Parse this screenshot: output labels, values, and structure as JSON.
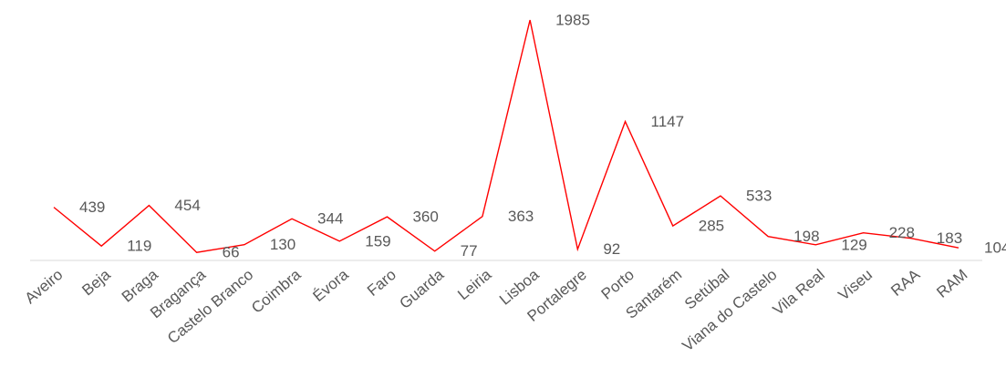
{
  "chart_data": {
    "type": "line",
    "categories": [
      "Aveiro",
      "Beja",
      "Braga",
      "Bragança",
      "Castelo Branco",
      "Coimbra",
      "Évora",
      "Faro",
      "Guarda",
      "Leiria",
      "Lisboa",
      "Portalegre",
      "Porto",
      "Santarém",
      "Setúbal",
      "Viana do Castelo",
      "Vila Real",
      "Viseu",
      "RAA",
      "RAM"
    ],
    "values": [
      439,
      119,
      454,
      66,
      130,
      344,
      159,
      360,
      77,
      363,
      1985,
      92,
      1147,
      285,
      533,
      198,
      129,
      228,
      183,
      104
    ],
    "color": "#ff0000",
    "ylim": [
      0,
      2000
    ]
  }
}
